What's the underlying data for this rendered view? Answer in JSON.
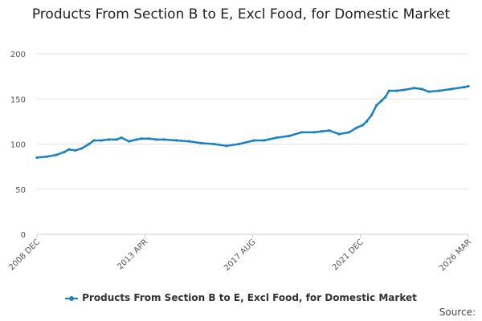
{
  "chart_data": {
    "type": "line",
    "title": "Products From Section B to E, Excl Food, for Domestic Market",
    "xlabel": "",
    "ylabel": "",
    "x_ticks": [
      "2008 DEC",
      "2013 APR",
      "2017 AUG",
      "2021 DEC",
      "2026 MAR"
    ],
    "x_range": [
      "2008 DEC",
      "2026 MAR"
    ],
    "ylim": [
      0,
      200
    ],
    "y_ticks": [
      0,
      50,
      100,
      150,
      200
    ],
    "grid": true,
    "legend_position": "bottom",
    "series": [
      {
        "name": "Products From Section B to E, Excl Food, for Domestic Market",
        "color": "#1a82c2",
        "x": [
          2008.92,
          2009.3,
          2009.7,
          2010.0,
          2010.2,
          2010.45,
          2010.7,
          2011.0,
          2011.2,
          2011.5,
          2011.8,
          2012.1,
          2012.3,
          2012.6,
          2012.9,
          2013.1,
          2013.4,
          2013.7,
          2014.0,
          2014.5,
          2015.0,
          2015.5,
          2016.0,
          2016.5,
          2017.0,
          2017.6,
          2018.0,
          2018.5,
          2019.0,
          2019.5,
          2020.0,
          2020.3,
          2020.6,
          2021.0,
          2021.4,
          2021.7,
          2021.95,
          2022.1,
          2022.3,
          2022.5,
          2022.7,
          2022.85,
          2023.0,
          2023.3,
          2023.6,
          2024.0,
          2024.3,
          2024.6,
          2025.0,
          2025.5,
          2026.0,
          2026.17
        ],
        "values": [
          85,
          86,
          88,
          91,
          94,
          93,
          95,
          100,
          104,
          104,
          105,
          105,
          107,
          103,
          105,
          106,
          106,
          105,
          105,
          104,
          103,
          101,
          100,
          98,
          100,
          104,
          104,
          107,
          109,
          113,
          113,
          114,
          115,
          111,
          113,
          118,
          121,
          125,
          132,
          143,
          148,
          152,
          159,
          159,
          160,
          162,
          161,
          158,
          159,
          161,
          163,
          164
        ]
      }
    ]
  },
  "legend": {
    "label": "Products From Section B to E, Excl Food, for Domestic Market"
  },
  "source_label": "Source:"
}
